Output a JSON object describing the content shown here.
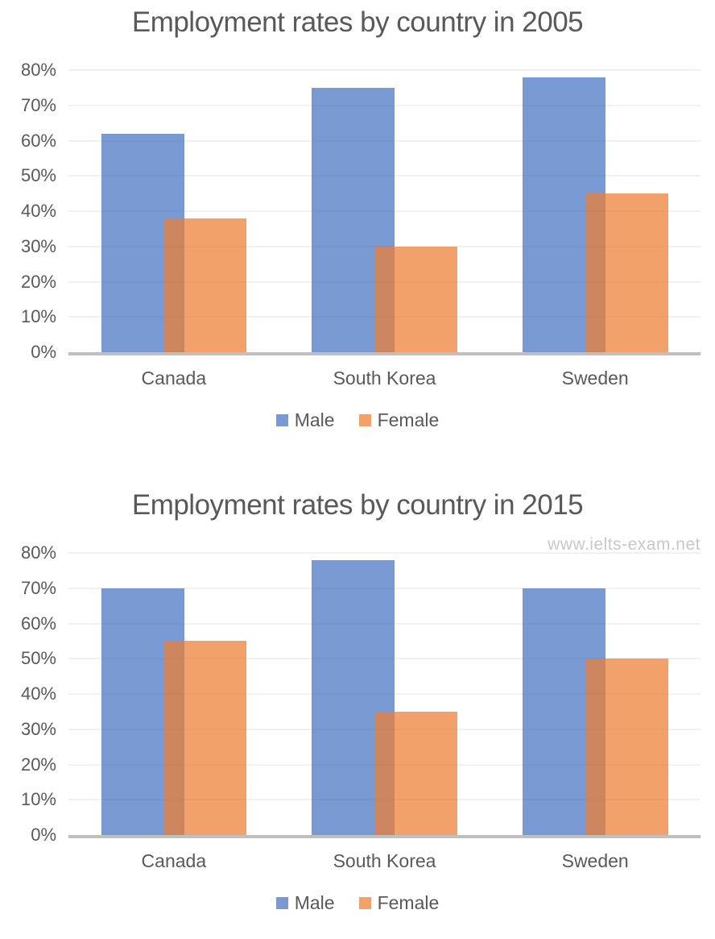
{
  "page": {
    "background": "#ffffff"
  },
  "colors": {
    "male_base": "#4472C4",
    "female_base": "#ED7D31",
    "series_fills": [
      "rgba(68,114,196,0.72)",
      "rgba(237,125,49,0.72)"
    ],
    "overlap_visible": "#CB8763",
    "title_text": "#595959",
    "axis_text": "#595959",
    "gridline": "#F1F1F1",
    "axis_line": "#BFBFBF",
    "watermark_color": "#C8C8C8"
  },
  "chart_data": [
    {
      "type": "bar",
      "title": "Employment rates by country in 2005",
      "categories": [
        "Canada",
        "South Korea",
        "Sweden"
      ],
      "series": [
        {
          "name": "Male",
          "values": [
            62,
            75,
            78
          ]
        },
        {
          "name": "Female",
          "values": [
            38,
            30,
            45
          ]
        }
      ],
      "yticks": [
        "0%",
        "10%",
        "20%",
        "30%",
        "40%",
        "50%",
        "60%",
        "70%",
        "80%"
      ],
      "ylim": [
        0,
        80
      ],
      "grid": true,
      "legend_position": "bottom",
      "legend_labels": [
        "Male",
        "Female"
      ]
    },
    {
      "type": "bar",
      "title": "Employment rates by country in 2015",
      "categories": [
        "Canada",
        "South Korea",
        "Sweden"
      ],
      "series": [
        {
          "name": "Male",
          "values": [
            70,
            78,
            70
          ]
        },
        {
          "name": "Female",
          "values": [
            55,
            35,
            50
          ]
        }
      ],
      "yticks": [
        "0%",
        "10%",
        "20%",
        "30%",
        "40%",
        "50%",
        "60%",
        "70%",
        "80%"
      ],
      "ylim": [
        0,
        80
      ],
      "grid": true,
      "legend_position": "bottom",
      "legend_labels": [
        "Male",
        "Female"
      ],
      "watermark": "www.ielts-exam.net"
    }
  ]
}
